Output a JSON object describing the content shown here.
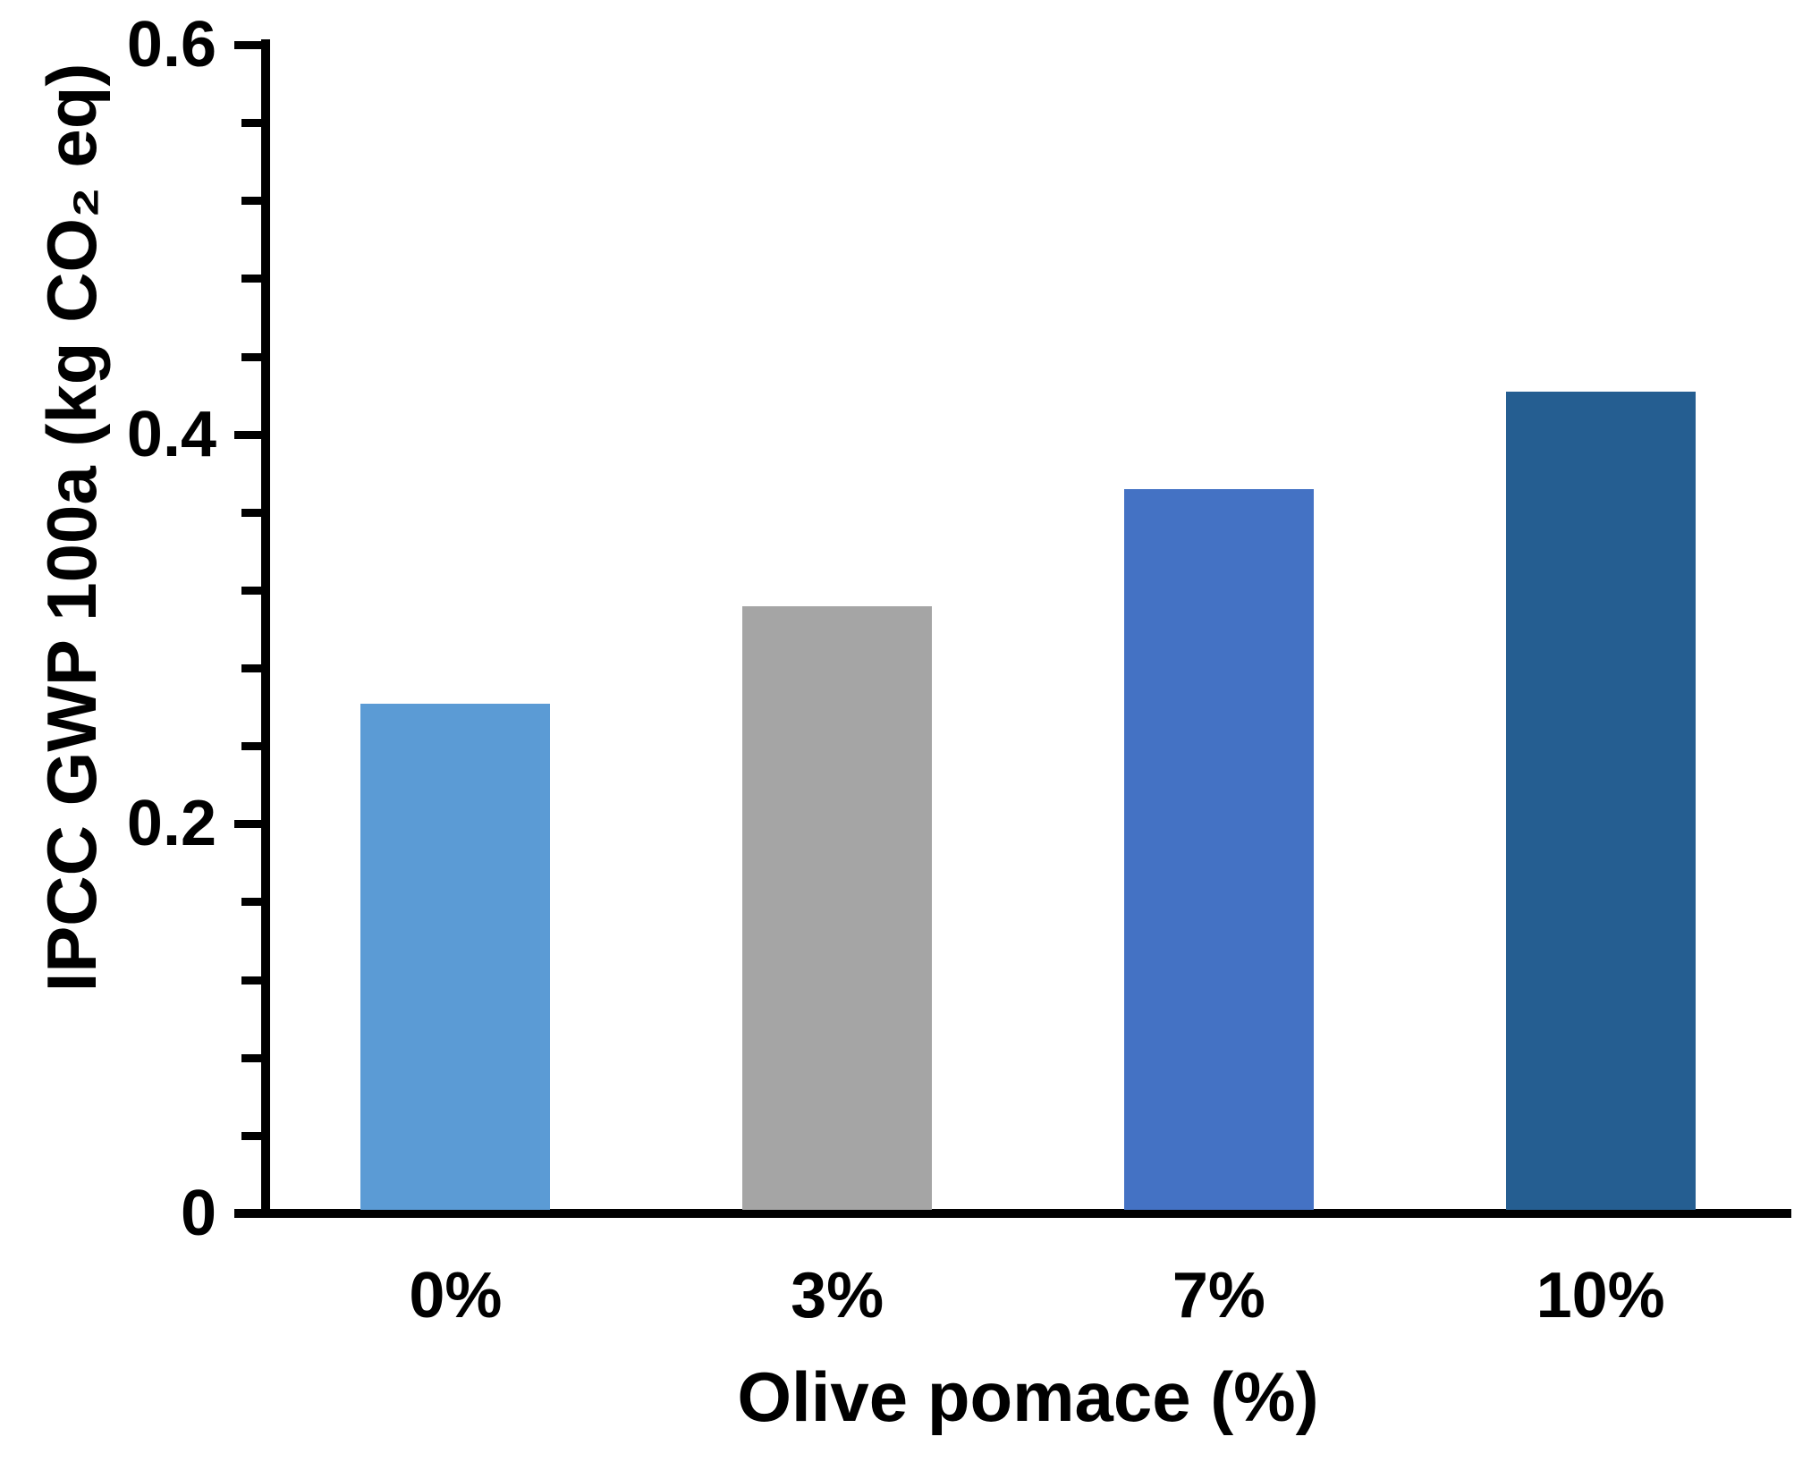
{
  "chart_data": {
    "type": "bar",
    "title": "",
    "categories": [
      "0%",
      "3%",
      "7%",
      "10%"
    ],
    "values": [
      0.26,
      0.31,
      0.37,
      0.42
    ],
    "bar_colors": [
      "#5B9BD5",
      "#A5A5A5",
      "#4472C4",
      "#255E91"
    ],
    "xlabel": "Olive pomace (%)",
    "ylabel": "IPCC GWP 100a (kg CO₂ eq)",
    "ylim": [
      0,
      0.6
    ],
    "yticks": [
      0,
      0.2,
      0.4,
      0.6
    ],
    "ytick_labels": [
      "0",
      "0.2",
      "0.4",
      "0.6"
    ],
    "minor_tick_step": 0.04,
    "grid": false,
    "legend": false,
    "axis_color": "#000000",
    "text_color": "#000000",
    "background": "#FFFFFF"
  }
}
